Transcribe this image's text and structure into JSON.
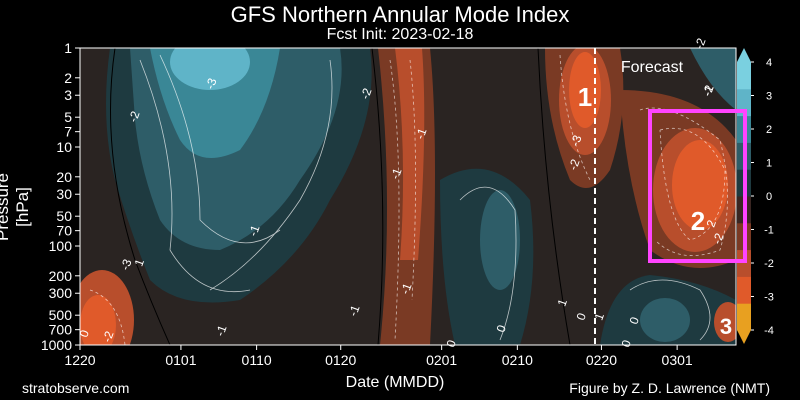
{
  "chart_data": {
    "type": "heatmap",
    "title": "GFS Northern Annular Mode Index",
    "subtitle": "Fcst Init: 2023-02-18",
    "xlabel": "Date (MMDD)",
    "ylabel": "Pressure [hPa]",
    "x_ticks": [
      "1220",
      "0101",
      "0110",
      "0120",
      "0201",
      "0210",
      "0220",
      "0301"
    ],
    "y_ticks": [
      1,
      2,
      3,
      5,
      7,
      10,
      20,
      30,
      50,
      70,
      100,
      200,
      300,
      500,
      700,
      1000
    ],
    "y_range": [
      1000,
      1
    ],
    "colorbar": {
      "ticks": [
        4,
        3,
        2,
        1,
        0,
        -1,
        -2,
        -3,
        -4
      ],
      "range": [
        -4,
        4
      ],
      "colors": [
        "#e8a020",
        "#e05a2a",
        "#b84e2c",
        "#7a3a24",
        "#3a2622",
        "#1e3a40",
        "#2e5d68",
        "#3a8796",
        "#5fb4c8",
        "#7ad0e0"
      ]
    },
    "forecast_label": "Forecast",
    "contour_labels": [
      "-3",
      "-2",
      "-1",
      "-1",
      "-1",
      "-1",
      "-1",
      "-1",
      "-2",
      "-2",
      "-2",
      "-2",
      "-2",
      "-3",
      "-3",
      "1",
      "1",
      "1",
      "0",
      "0",
      "0",
      "0",
      "0",
      "0",
      "2",
      "-1",
      "-2"
    ],
    "annotations": [
      "1",
      "2",
      "3"
    ],
    "highlight_box": {
      "label": "2",
      "color": "#ff44ff"
    }
  },
  "footer": {
    "left": "stratobserve.com",
    "right": "Figure by Z. D. Lawrence (NMT)"
  }
}
